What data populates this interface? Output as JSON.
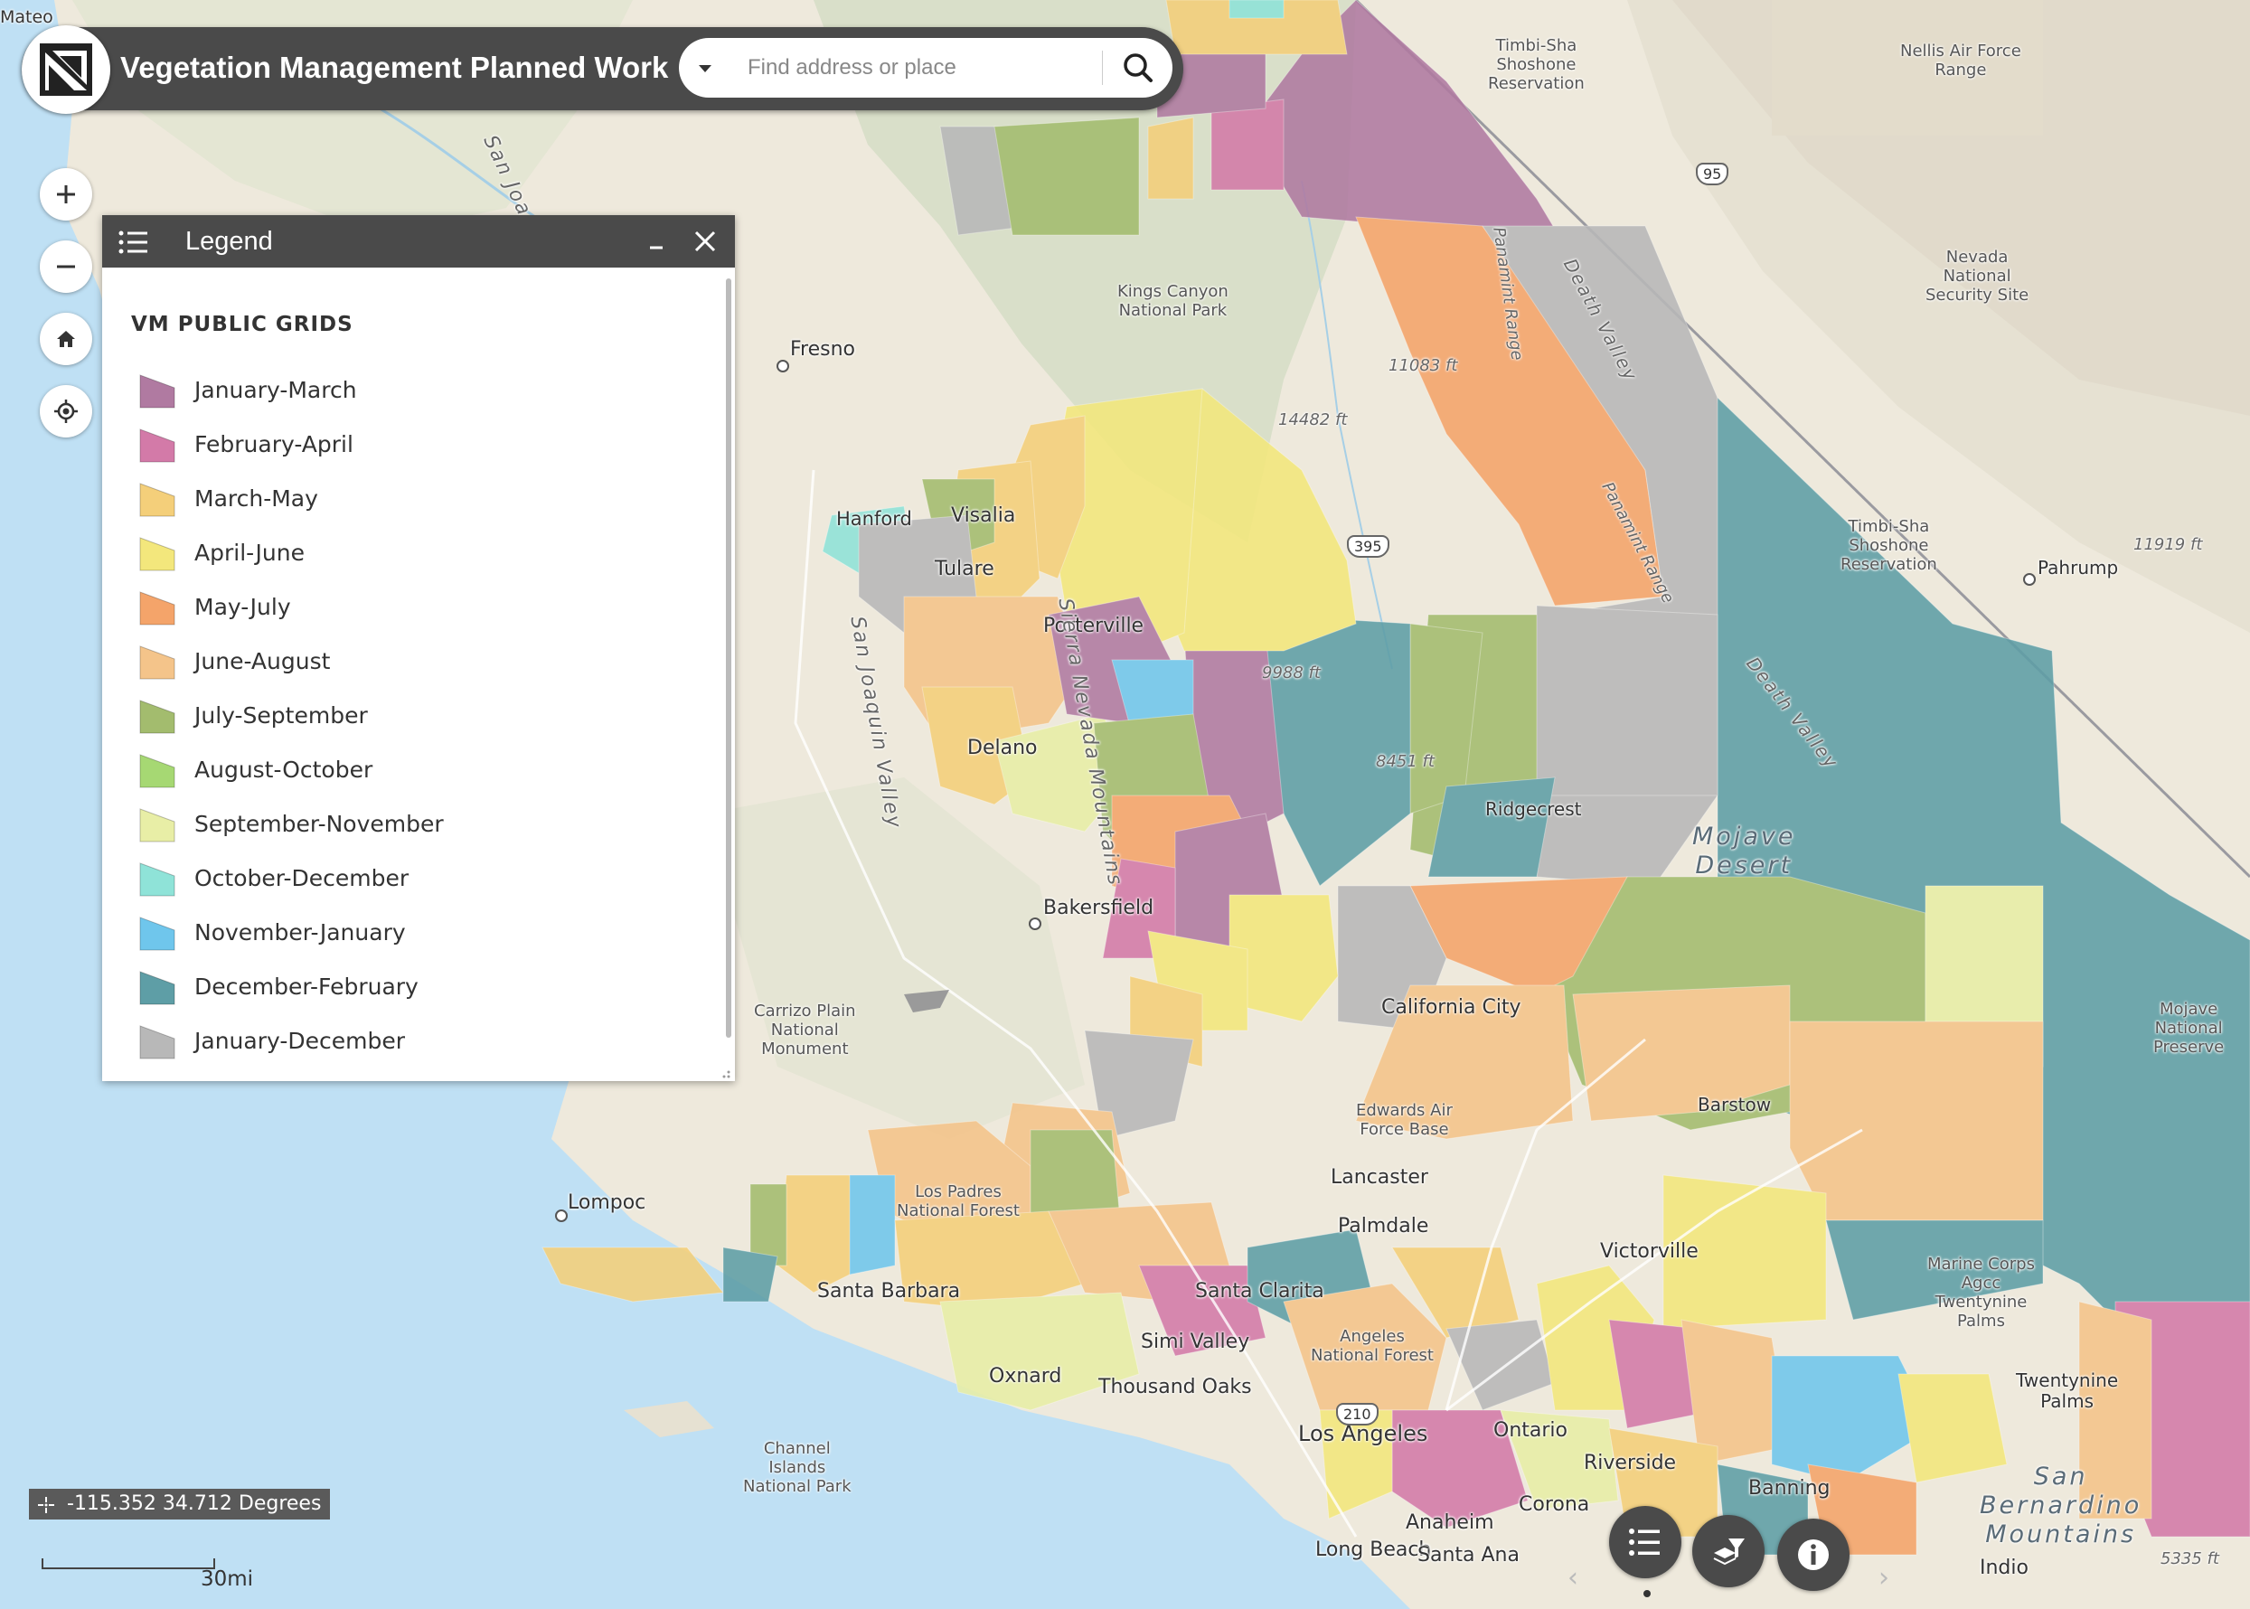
{
  "app": {
    "title": "Vegetation Management Planned Work",
    "search_placeholder": "Find address or place"
  },
  "legend": {
    "title": "Legend",
    "section": "VM PUBLIC GRIDS",
    "items": [
      {
        "label": "January-March",
        "color": "#b07aa1"
      },
      {
        "label": "February-April",
        "color": "#d37aa8"
      },
      {
        "label": "March-May",
        "color": "#f4cf7a"
      },
      {
        "label": "April-June",
        "color": "#f3e77c"
      },
      {
        "label": "May-July",
        "color": "#f4a46a"
      },
      {
        "label": "June-August",
        "color": "#f4c48a"
      },
      {
        "label": "July-September",
        "color": "#a3bc6e"
      },
      {
        "label": "August-October",
        "color": "#a6d873"
      },
      {
        "label": "September-November",
        "color": "#e8eea6"
      },
      {
        "label": "October-December",
        "color": "#8fe3d8"
      },
      {
        "label": "November-January",
        "color": "#6fc6ec"
      },
      {
        "label": "December-February",
        "color": "#5e9ea6"
      },
      {
        "label": "January-December",
        "color": "#b8b8b8"
      }
    ]
  },
  "coordinates": "-115.352 34.712 Degrees",
  "scale": "30mi",
  "map_labels": {
    "mateo": "Mateo",
    "fresno": "Fresno",
    "hanford": "Hanford",
    "visalia": "Visalia",
    "tulare": "Tulare",
    "porterville": "Porterville",
    "delano": "Delano",
    "bakersfield": "Bakersfield",
    "lompoc": "Lompoc",
    "santa_barbara": "Santa Barbara",
    "oxnard": "Oxnard",
    "thousand_oaks": "Thousand Oaks",
    "simi_valley": "Simi Valley",
    "santa_clarita": "Santa Clarita",
    "los_angeles": "Los Angeles",
    "long_beach": "Long Beach",
    "anaheim": "Anaheim",
    "santa_ana": "Santa Ana",
    "ontario": "Ontario",
    "riverside": "Riverside",
    "corona": "Corona",
    "banning": "Banning",
    "victorville": "Victorville",
    "lancaster": "Lancaster",
    "palmdale": "Palmdale",
    "california_city": "California City",
    "barstow": "Barstow",
    "ridgecrest": "Ridgecrest",
    "pahrump": "Pahrump",
    "indio": "Indio",
    "twentynine_palms": "Twentynine\nPalms",
    "kings_canyon": "Kings Canyon\nNational Park",
    "timbi_sha_top": "Timbi-Sha\nShoshone\nReservation",
    "timbi_sha_mid": "Timbi-Sha\nShoshone\nReservation",
    "nellis": "Nellis Air Force\nRange",
    "nevada_security": "Nevada\nNational\nSecurity Site",
    "carrizo": "Carrizo Plain\nNational\nMonument",
    "los_padres": "Los Padres\nNational Forest",
    "angeles": "Angeles\nNational Forest",
    "edwards": "Edwards Air\nForce Base",
    "channel_islands": "Channel\nIslands\nNational Park",
    "marine_corps": "Marine Corps\nAgcc\nTwentynine\nPalms",
    "mojave_preserve": "Mojave\nNational\nPreserve",
    "mojave_desert": "Mojave\nDesert",
    "san_bernardino": "San\nBernardino\nMountains",
    "sierra_nevada": "Sierra Nevada Mountains",
    "san_joaquin_valley": "San Joaquin Valley",
    "san_joaquin_top": "San Joa",
    "death_valley_1": "Death Valley",
    "death_valley_2": "Death Valley",
    "panamint_1": "Panamint Range",
    "panamint_2": "Panamint Range",
    "elev_11083": "11083 ft",
    "elev_14482": "14482 ft",
    "elev_9988": "9988 ft",
    "elev_8451": "8451 ft",
    "elev_11919": "11919 ft",
    "elev_5335": "5335 ft",
    "hwy_95": "95",
    "hwy_395": "395",
    "hwy_210": "210"
  }
}
